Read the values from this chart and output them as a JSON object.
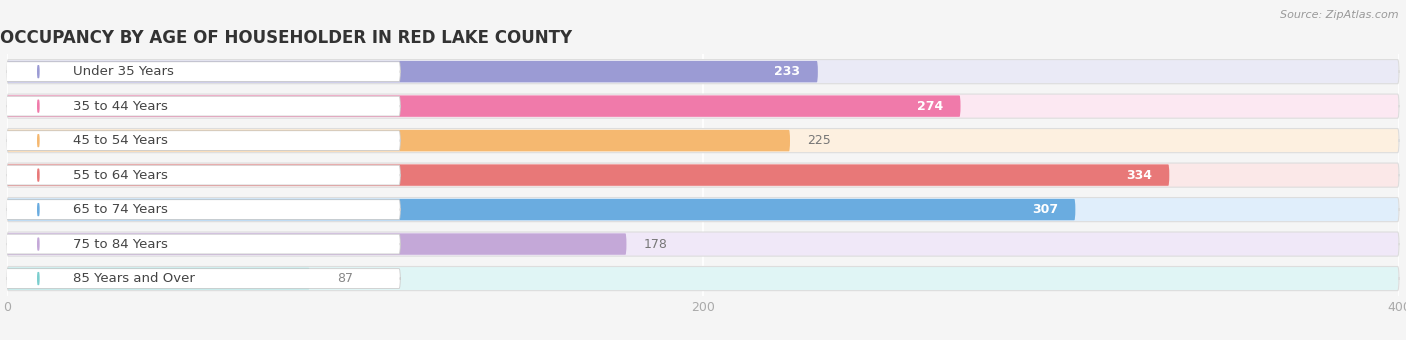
{
  "title": "OCCUPANCY BY AGE OF HOUSEHOLDER IN RED LAKE COUNTY",
  "source": "Source: ZipAtlas.com",
  "categories": [
    "Under 35 Years",
    "35 to 44 Years",
    "45 to 54 Years",
    "55 to 64 Years",
    "65 to 74 Years",
    "75 to 84 Years",
    "85 Years and Over"
  ],
  "values": [
    233,
    274,
    225,
    334,
    307,
    178,
    87
  ],
  "bar_colors": [
    "#9b9bd4",
    "#f07aaa",
    "#f5b870",
    "#e87878",
    "#6aace0",
    "#c4a8d8",
    "#7bcece"
  ],
  "bar_bg_colors": [
    "#eaeaf6",
    "#fce8f2",
    "#fdf0e0",
    "#fbe8e8",
    "#e0eefb",
    "#f0e8f8",
    "#e0f5f5"
  ],
  "label_bg": "#ffffff",
  "xlim_data": [
    0,
    400
  ],
  "xticks": [
    0,
    200,
    400
  ],
  "background_color": "#f5f5f5",
  "title_fontsize": 12,
  "label_fontsize": 9.5,
  "value_fontsize": 9,
  "value_color_inside_white": [
    233,
    274,
    334,
    307
  ],
  "value_color_inside_dark": [
    225,
    178
  ],
  "value_outside": [
    87
  ]
}
